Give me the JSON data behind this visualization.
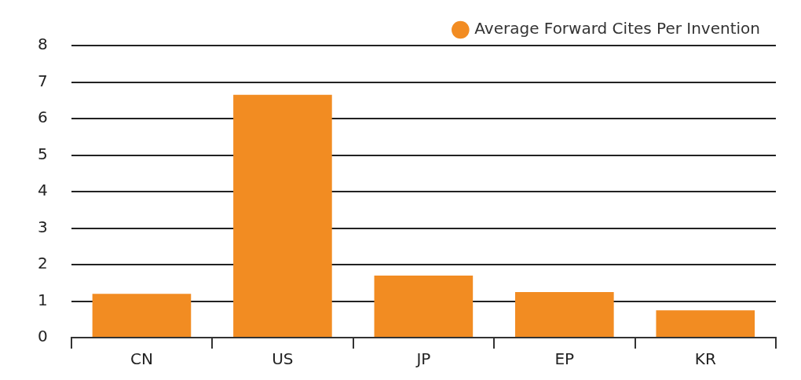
{
  "chart_data": {
    "type": "bar",
    "categories": [
      "CN",
      "US",
      "JP",
      "EP",
      "KR"
    ],
    "series": [
      {
        "name": "Average Forward Cites Per Invention",
        "color": "#f28c22",
        "values": [
          1.2,
          6.65,
          1.7,
          1.25,
          0.75
        ]
      }
    ],
    "ylim": [
      0,
      8
    ],
    "yticks": [
      0,
      1,
      2,
      3,
      4,
      5,
      6,
      7,
      8
    ],
    "grid": "y",
    "legend": "top right"
  }
}
